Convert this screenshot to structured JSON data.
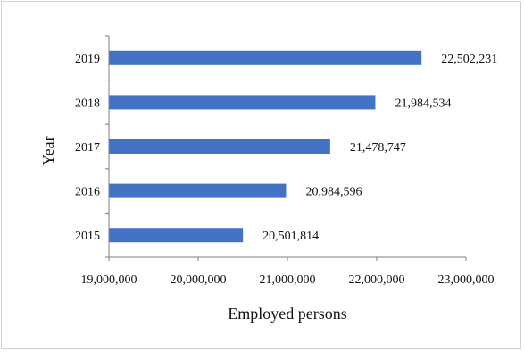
{
  "chart_data": {
    "type": "bar",
    "orientation": "horizontal",
    "categories": [
      "2015",
      "2016",
      "2017",
      "2018",
      "2019"
    ],
    "values": [
      20501814,
      20984596,
      21478747,
      21984534,
      22502231
    ],
    "value_labels": [
      "20,501,814",
      "20,984,596",
      "21,478,747",
      "21,984,534",
      "22,502,231"
    ],
    "xlabel": "Employed persons",
    "ylabel": "Year",
    "xlim": [
      19000000,
      23000000
    ],
    "xticks": [
      19000000,
      20000000,
      21000000,
      22000000,
      23000000
    ],
    "xtick_labels": [
      "19,000,000",
      "20,000,000",
      "21,000,000",
      "22,000,000",
      "23,000,000"
    ],
    "bar_color": "#4472C4",
    "grid": false,
    "legend": "none"
  }
}
